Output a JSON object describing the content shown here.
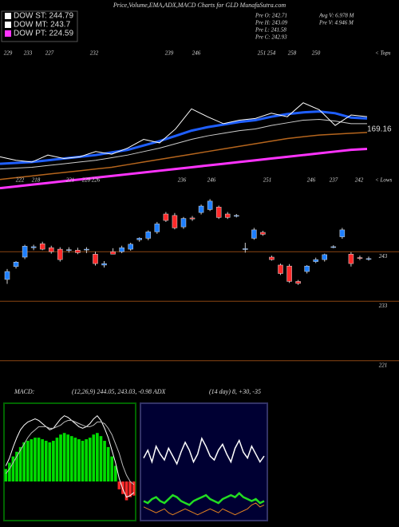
{
  "header": {
    "title": "Price,Volume,EMA,ADX,MACD Charts for GLD MunafaSutra.com",
    "legend": [
      {
        "label": "DOW ST: 244.79",
        "color": "#ffffff"
      },
      {
        "label": "DOW MT: 243.7",
        "color": "#ffffff"
      },
      {
        "label": "DOW PT: 224.59",
        "color": "#ff33ff"
      }
    ],
    "stats": [
      "Pre  O: 242.71",
      "Pre  H: 243.09",
      "Pre  L: 241.58",
      "Pre  C: 242.93",
      "Avg  V: 6.978  M",
      "Pre  V: 4.946  M"
    ]
  },
  "chart_data": [
    {
      "type": "line",
      "ylim": [
        150,
        260
      ],
      "annotation": "169.16",
      "tops": [
        229,
        233,
        227,
        232,
        239,
        246,
        251,
        254,
        258,
        250
      ],
      "tops_label": "< Tops",
      "lows": [
        222,
        218,
        221,
        228,
        226,
        236,
        246,
        251,
        246,
        237,
        242
      ],
      "lows_label": "< Lows",
      "series": [
        {
          "color": "#ff33ff",
          "width": 3,
          "values": [
            154,
            156,
            158,
            160,
            162,
            164,
            166,
            168,
            170,
            172,
            174,
            176,
            178,
            180,
            182,
            184,
            186,
            188,
            190,
            192,
            194,
            196,
            198,
            199
          ]
        },
        {
          "color": "#b5651d",
          "width": 1.5,
          "values": [
            164,
            166,
            168,
            170,
            172,
            174,
            176,
            178,
            181,
            184,
            187,
            190,
            193,
            196,
            199,
            202,
            205,
            208,
            211,
            213,
            215,
            216,
            217,
            218
          ]
        },
        {
          "color": "#cccccc",
          "width": 1,
          "values": [
            176,
            177,
            178,
            180,
            182,
            184,
            186,
            189,
            192,
            196,
            200,
            205,
            210,
            214,
            217,
            220,
            222,
            226,
            229,
            232,
            233,
            231,
            228,
            228
          ]
        },
        {
          "color": "#1f5fff",
          "width": 3,
          "values": [
            182,
            183,
            184,
            186,
            188,
            190,
            192,
            195,
            198,
            203,
            208,
            214,
            220,
            224,
            227,
            230,
            232,
            236,
            239,
            241,
            242,
            240,
            235,
            234
          ]
        },
        {
          "color": "#ffffff",
          "width": 1,
          "values": [
            190,
            186,
            184,
            192,
            188,
            190,
            196,
            193,
            200,
            210,
            206,
            222,
            245,
            236,
            228,
            232,
            234,
            240,
            236,
            252,
            244,
            226,
            238,
            236
          ]
        }
      ]
    },
    {
      "type": "candlestick",
      "ylim": [
        220,
        253.5
      ],
      "yticks": [
        243,
        233,
        221
      ],
      "up_color": "#1e7fff",
      "down_color": "#ff2a2a",
      "grid_color": "#8b4513",
      "open": [
        237.4,
        240.0,
        241.9,
        243.8,
        244.6,
        243.8,
        243.5,
        243.3,
        243.3,
        243.4,
        242.5,
        240.3,
        243.0,
        243.0,
        243.5,
        245.4,
        245.7,
        247.0,
        250.6,
        250.3,
        248.0,
        249.8,
        250.9,
        251.5,
        252.0,
        250.6,
        250.3,
        243.6,
        245.7,
        246.9,
        241.9,
        240.3,
        240.1,
        237.0,
        239.0,
        241.0,
        241.4,
        244.0,
        246.0,
        242.5,
        241.8,
        241.6
      ],
      "high": [
        239.5,
        241.1,
        244.4,
        244.4,
        245.0,
        244.2,
        243.9,
        243.9,
        243.8,
        243.9,
        243.0,
        241.1,
        243.7,
        244.2,
        244.8,
        245.9,
        247.3,
        249.0,
        251.0,
        250.8,
        250.0,
        250.2,
        252.5,
        253.6,
        252.3,
        251.0,
        250.6,
        244.8,
        247.8,
        247.2,
        242.2,
        240.6,
        240.5,
        237.3,
        240.3,
        241.8,
        242.6,
        244.3,
        247.8,
        242.9,
        242.2,
        242.0
      ],
      "low": [
        236.5,
        239.6,
        241.5,
        243.3,
        243.3,
        242.6,
        241.0,
        242.8,
        242.5,
        242.7,
        240.2,
        239.8,
        242.6,
        242.7,
        243.2,
        245.0,
        245.3,
        246.6,
        249.0,
        247.5,
        247.6,
        249.2,
        250.5,
        251.2,
        249.6,
        249.6,
        249.9,
        242.8,
        245.4,
        246.2,
        241.2,
        238.3,
        236.7,
        236.3,
        238.6,
        240.7,
        241.0,
        243.7,
        245.6,
        240.0,
        241.3,
        241.2
      ],
      "close": [
        239.0,
        240.9,
        244.1,
        244.0,
        243.5,
        243.0,
        241.4,
        243.4,
        242.8,
        243.5,
        240.6,
        240.6,
        242.5,
        243.8,
        244.5,
        245.7,
        247.0,
        248.6,
        249.3,
        247.8,
        249.7,
        249.6,
        252.2,
        253.2,
        249.9,
        249.9,
        250.3,
        243.6,
        247.4,
        246.5,
        241.4,
        238.6,
        237.0,
        236.6,
        240.1,
        241.4,
        242.4,
        244.0,
        247.4,
        240.6,
        241.7,
        241.6
      ]
    },
    {
      "type": "macd",
      "title": "MACD:",
      "subtitle": "(12,26,9) 244.05, 243.03, -0.98 ADX",
      "ylim": [
        -2.5,
        5
      ],
      "pos_color": "#00dd00",
      "neg_color": "#ff2a2a",
      "border": "#006400",
      "histogram": [
        0.8,
        1.2,
        1.6,
        1.9,
        2.2,
        2.5,
        2.6,
        2.7,
        2.8,
        2.8,
        2.7,
        2.6,
        2.5,
        2.6,
        2.8,
        3.0,
        3.1,
        3.0,
        2.9,
        2.8,
        2.7,
        2.6,
        2.7,
        2.8,
        3.0,
        3.1,
        2.9,
        2.6,
        2.2,
        1.6,
        1.0,
        -0.5,
        -0.8,
        -1.2,
        -1.0,
        -0.9
      ],
      "series": [
        {
          "color": "#ffffff",
          "values": [
            1,
            1.5,
            2.2,
            2.8,
            3.3,
            3.6,
            3.8,
            3.9,
            4.0,
            3.9,
            3.7,
            3.5,
            3.3,
            3.4,
            3.7,
            4.0,
            4.2,
            4.1,
            3.9,
            3.7,
            3.5,
            3.4,
            3.5,
            3.7,
            4.0,
            4.2,
            3.9,
            3.4,
            2.8,
            2.0,
            1.2,
            0.2,
            -0.5,
            -1.0,
            -0.9,
            -0.7
          ]
        },
        {
          "color": "#bbbbbb",
          "values": [
            0.5,
            0.8,
            1.2,
            1.6,
            2.0,
            2.4,
            2.8,
            3.1,
            3.3,
            3.5,
            3.5,
            3.5,
            3.4,
            3.4,
            3.5,
            3.6,
            3.8,
            3.9,
            3.9,
            3.8,
            3.7,
            3.6,
            3.5,
            3.5,
            3.6,
            3.8,
            3.8,
            3.7,
            3.4,
            3.0,
            2.4,
            1.8,
            1.0,
            0.4,
            0.0,
            -0.2
          ]
        }
      ]
    },
    {
      "type": "adx",
      "title": "(14  day) 8, +30, -35",
      "ylim": [
        0,
        60
      ],
      "background": "#000033",
      "border": "#333366",
      "series": [
        {
          "color": "#ffffff",
          "width": 1.5,
          "values": [
            32,
            36,
            30,
            38,
            34,
            31,
            37,
            33,
            29,
            35,
            40,
            36,
            30,
            34,
            42,
            38,
            33,
            31,
            36,
            39,
            34,
            30,
            37,
            41,
            35,
            32,
            38,
            34,
            30,
            33
          ]
        },
        {
          "color": "#22dd22",
          "width": 2.5,
          "values": [
            10,
            9,
            11,
            12,
            10,
            9,
            11,
            13,
            12,
            10,
            9,
            8,
            10,
            11,
            12,
            13,
            11,
            10,
            9,
            11,
            12,
            13,
            12,
            14,
            12,
            11,
            10,
            11,
            9,
            10
          ]
        },
        {
          "color": "#e08020",
          "width": 1,
          "values": [
            7,
            6,
            5,
            4,
            5,
            6,
            4,
            3,
            4,
            5,
            6,
            5,
            4,
            3,
            4,
            5,
            6,
            5,
            4,
            6,
            5,
            4,
            3,
            4,
            5,
            6,
            8,
            9,
            7,
            8
          ]
        }
      ]
    }
  ]
}
